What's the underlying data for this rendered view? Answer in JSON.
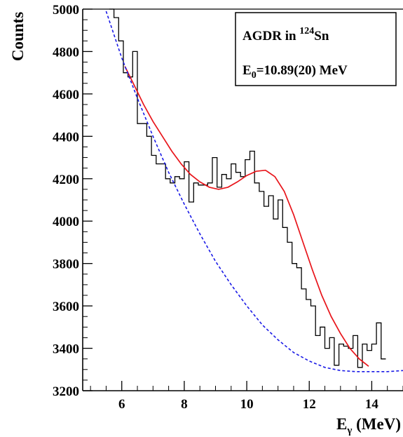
{
  "chart_data": {
    "type": "line",
    "title": "",
    "xlabel": "E",
    "xlabel_sub": "γ",
    "xlabel_unit": " (MeV)",
    "ylabel": "Counts",
    "xlim": [
      4.75,
      15
    ],
    "ylim": [
      3200,
      5000
    ],
    "x_ticks": [
      6,
      8,
      10,
      12,
      14
    ],
    "y_ticks": [
      3200,
      3400,
      3600,
      3800,
      4000,
      4200,
      4400,
      4600,
      4800,
      5000
    ],
    "grid": false,
    "legend": {
      "placement": "top-right",
      "line1_prefix": "AGDR in ",
      "line1_sup": "124",
      "line1_suffix": "Sn",
      "line2_prefix": "E",
      "line2_sub": "0",
      "line2_suffix": "=10.89(20) MeV"
    },
    "series": [
      {
        "style": "histogram",
        "color": "#000000",
        "bin_width": 0.15,
        "x_start": 5.6,
        "values": [
          5010,
          4960,
          4850,
          4700,
          4680,
          4800,
          4460,
          4460,
          4400,
          4310,
          4270,
          4270,
          4200,
          4180,
          4210,
          4200,
          4280,
          4090,
          4180,
          4170,
          4170,
          4180,
          4300,
          4160,
          4220,
          4200,
          4270,
          4230,
          4210,
          4290,
          4330,
          4180,
          4140,
          4070,
          4120,
          4010,
          4100,
          3970,
          3900,
          3800,
          3780,
          3680,
          3630,
          3600,
          3460,
          3500,
          3400,
          3450,
          3320,
          3420,
          3410,
          3400,
          3460,
          3310,
          3420,
          3390,
          3420,
          3520,
          3350
        ]
      },
      {
        "style": "fit",
        "color": "#e8151b",
        "x": [
          6.1,
          6.4,
          6.7,
          7.0,
          7.3,
          7.6,
          7.9,
          8.2,
          8.5,
          8.8,
          9.1,
          9.4,
          9.7,
          10.0,
          10.3,
          10.6,
          10.9,
          11.2,
          11.5,
          11.8,
          12.1,
          12.4,
          12.7,
          13.0,
          13.3,
          13.6,
          13.9
        ],
        "y": [
          4730,
          4640,
          4550,
          4470,
          4400,
          4330,
          4270,
          4220,
          4185,
          4160,
          4150,
          4160,
          4185,
          4215,
          4235,
          4240,
          4210,
          4140,
          4030,
          3900,
          3770,
          3650,
          3550,
          3470,
          3400,
          3350,
          3315
        ]
      },
      {
        "style": "background",
        "color": "#1a1ae6",
        "x": [
          5.5,
          6.0,
          6.5,
          7.0,
          7.5,
          8.0,
          8.5,
          9.0,
          9.5,
          10.0,
          10.5,
          11.0,
          11.5,
          12.0,
          12.5,
          13.0,
          13.5,
          14.0,
          14.5,
          15.0
        ],
        "y": [
          4990,
          4770,
          4580,
          4400,
          4230,
          4080,
          3940,
          3810,
          3700,
          3600,
          3510,
          3440,
          3380,
          3340,
          3310,
          3295,
          3290,
          3290,
          3290,
          3295
        ]
      }
    ]
  }
}
